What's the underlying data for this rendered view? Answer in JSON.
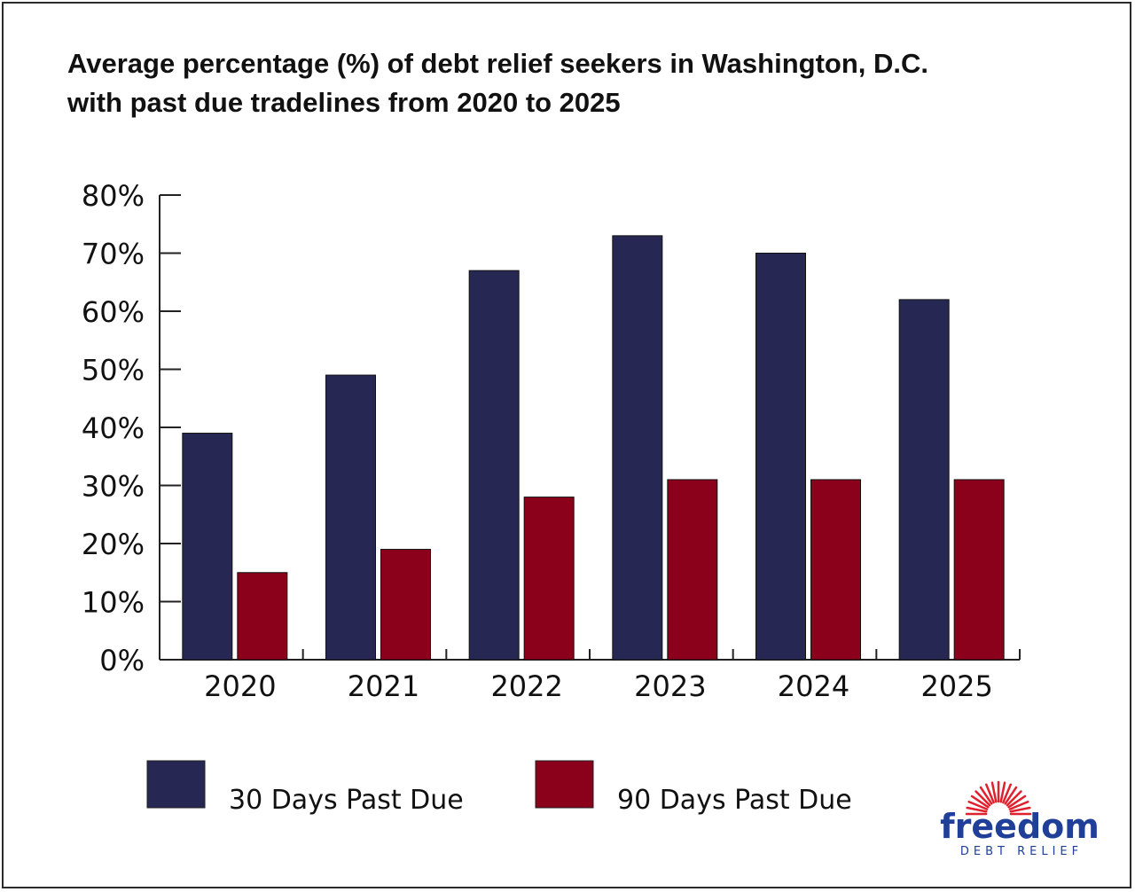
{
  "title_lines": [
    "Average percentage (%) of debt relief seekers in Washington, D.C.",
    "with past due tradelines from 2020 to 2025"
  ],
  "colors": {
    "series_30": "#262752",
    "series_90": "#8b001a",
    "logo": "#1f3f99",
    "logo_sun": "#e0202c"
  },
  "logo": {
    "word": "freedom",
    "sub": "DEBT RELIEF"
  },
  "chart_data": {
    "type": "bar",
    "categories": [
      "2020",
      "2021",
      "2022",
      "2023",
      "2024",
      "2025"
    ],
    "series": [
      {
        "name": "30 Days Past Due",
        "values": [
          39,
          49,
          67,
          73,
          70,
          62
        ]
      },
      {
        "name": "90 Days Past Due",
        "values": [
          15,
          19,
          28,
          31,
          31,
          31
        ]
      }
    ],
    "ylim": [
      0,
      80
    ],
    "yticks": [
      0,
      10,
      20,
      30,
      40,
      50,
      60,
      70,
      80
    ],
    "ytick_labels": [
      "0%",
      "10%",
      "20%",
      "30%",
      "40%",
      "50%",
      "60%",
      "70%",
      "80%"
    ],
    "grid": false,
    "legend_position": "bottom-left"
  }
}
